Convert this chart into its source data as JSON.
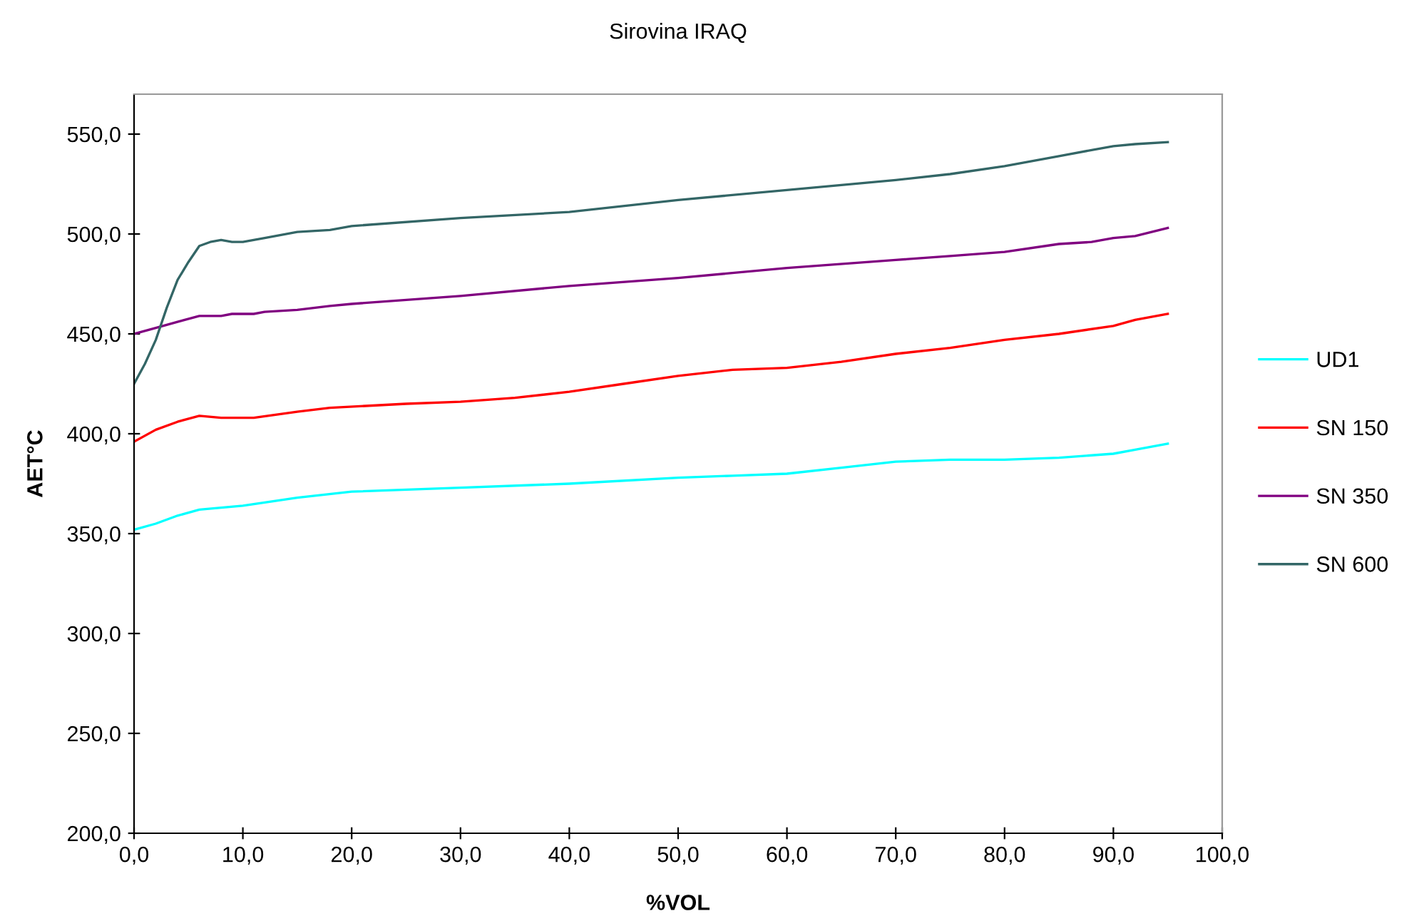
{
  "chart_data": {
    "type": "line",
    "title": "Sirovina IRAQ",
    "xlabel": "%VOL",
    "ylabel": "AET°C",
    "xlim": [
      0,
      100
    ],
    "ylim": [
      200,
      570
    ],
    "xticks": [
      {
        "value": 0,
        "label": "0,0"
      },
      {
        "value": 10,
        "label": "10,0"
      },
      {
        "value": 20,
        "label": "20,0"
      },
      {
        "value": 30,
        "label": "30,0"
      },
      {
        "value": 40,
        "label": "40,0"
      },
      {
        "value": 50,
        "label": "50,0"
      },
      {
        "value": 60,
        "label": "60,0"
      },
      {
        "value": 70,
        "label": "70,0"
      },
      {
        "value": 80,
        "label": "80,0"
      },
      {
        "value": 90,
        "label": "90,0"
      },
      {
        "value": 100,
        "label": "100,0"
      }
    ],
    "yticks": [
      {
        "value": 200,
        "label": "200,0"
      },
      {
        "value": 250,
        "label": "250,0"
      },
      {
        "value": 300,
        "label": "300,0"
      },
      {
        "value": 350,
        "label": "350,0"
      },
      {
        "value": 400,
        "label": "400,0"
      },
      {
        "value": 450,
        "label": "450,0"
      },
      {
        "value": 500,
        "label": "500,0"
      },
      {
        "value": 550,
        "label": "550,0"
      }
    ],
    "grid": false,
    "legend": "right",
    "marker": "none",
    "line_style": "solid",
    "series": [
      {
        "name": "UD1",
        "color": "#00ffff",
        "x": [
          0,
          2,
          4,
          6,
          8,
          10,
          15,
          20,
          30,
          40,
          50,
          55,
          60,
          65,
          70,
          75,
          80,
          85,
          90,
          92,
          95
        ],
        "values": [
          352,
          355,
          359,
          362,
          363,
          364,
          368,
          371,
          373,
          375,
          378,
          379,
          380,
          383,
          386,
          387,
          387,
          388,
          390,
          392,
          395
        ]
      },
      {
        "name": "SN 150",
        "color": "#ff0000",
        "x": [
          0,
          2,
          4,
          6,
          8,
          11,
          15,
          18,
          25,
          30,
          35,
          40,
          45,
          50,
          55,
          60,
          65,
          70,
          75,
          80,
          85,
          90,
          92,
          95
        ],
        "values": [
          396,
          402,
          406,
          409,
          408,
          408,
          411,
          413,
          415,
          416,
          418,
          421,
          425,
          429,
          432,
          433,
          436,
          440,
          443,
          447,
          450,
          454,
          457,
          460
        ]
      },
      {
        "name": "SN 350",
        "color": "#800080",
        "x": [
          0,
          2,
          4,
          6,
          8,
          9,
          11,
          12,
          15,
          18,
          20,
          30,
          40,
          50,
          60,
          70,
          75,
          80,
          85,
          88,
          90,
          92,
          95
        ],
        "values": [
          450,
          453,
          456,
          459,
          459,
          460,
          460,
          461,
          462,
          464,
          465,
          469,
          474,
          478,
          483,
          487,
          489,
          491,
          495,
          496,
          498,
          499,
          503
        ]
      },
      {
        "name": "SN 600",
        "color": "#336666",
        "x": [
          0,
          1,
          2,
          3,
          4,
          5,
          6,
          7,
          8,
          9,
          10,
          12,
          15,
          18,
          20,
          30,
          40,
          50,
          60,
          70,
          75,
          80,
          85,
          88,
          90,
          92,
          95
        ],
        "values": [
          425,
          435,
          447,
          463,
          477,
          486,
          494,
          496,
          497,
          496,
          496,
          498,
          501,
          502,
          504,
          508,
          511,
          517,
          522,
          527,
          530,
          534,
          539,
          542,
          544,
          545,
          546
        ]
      }
    ]
  }
}
